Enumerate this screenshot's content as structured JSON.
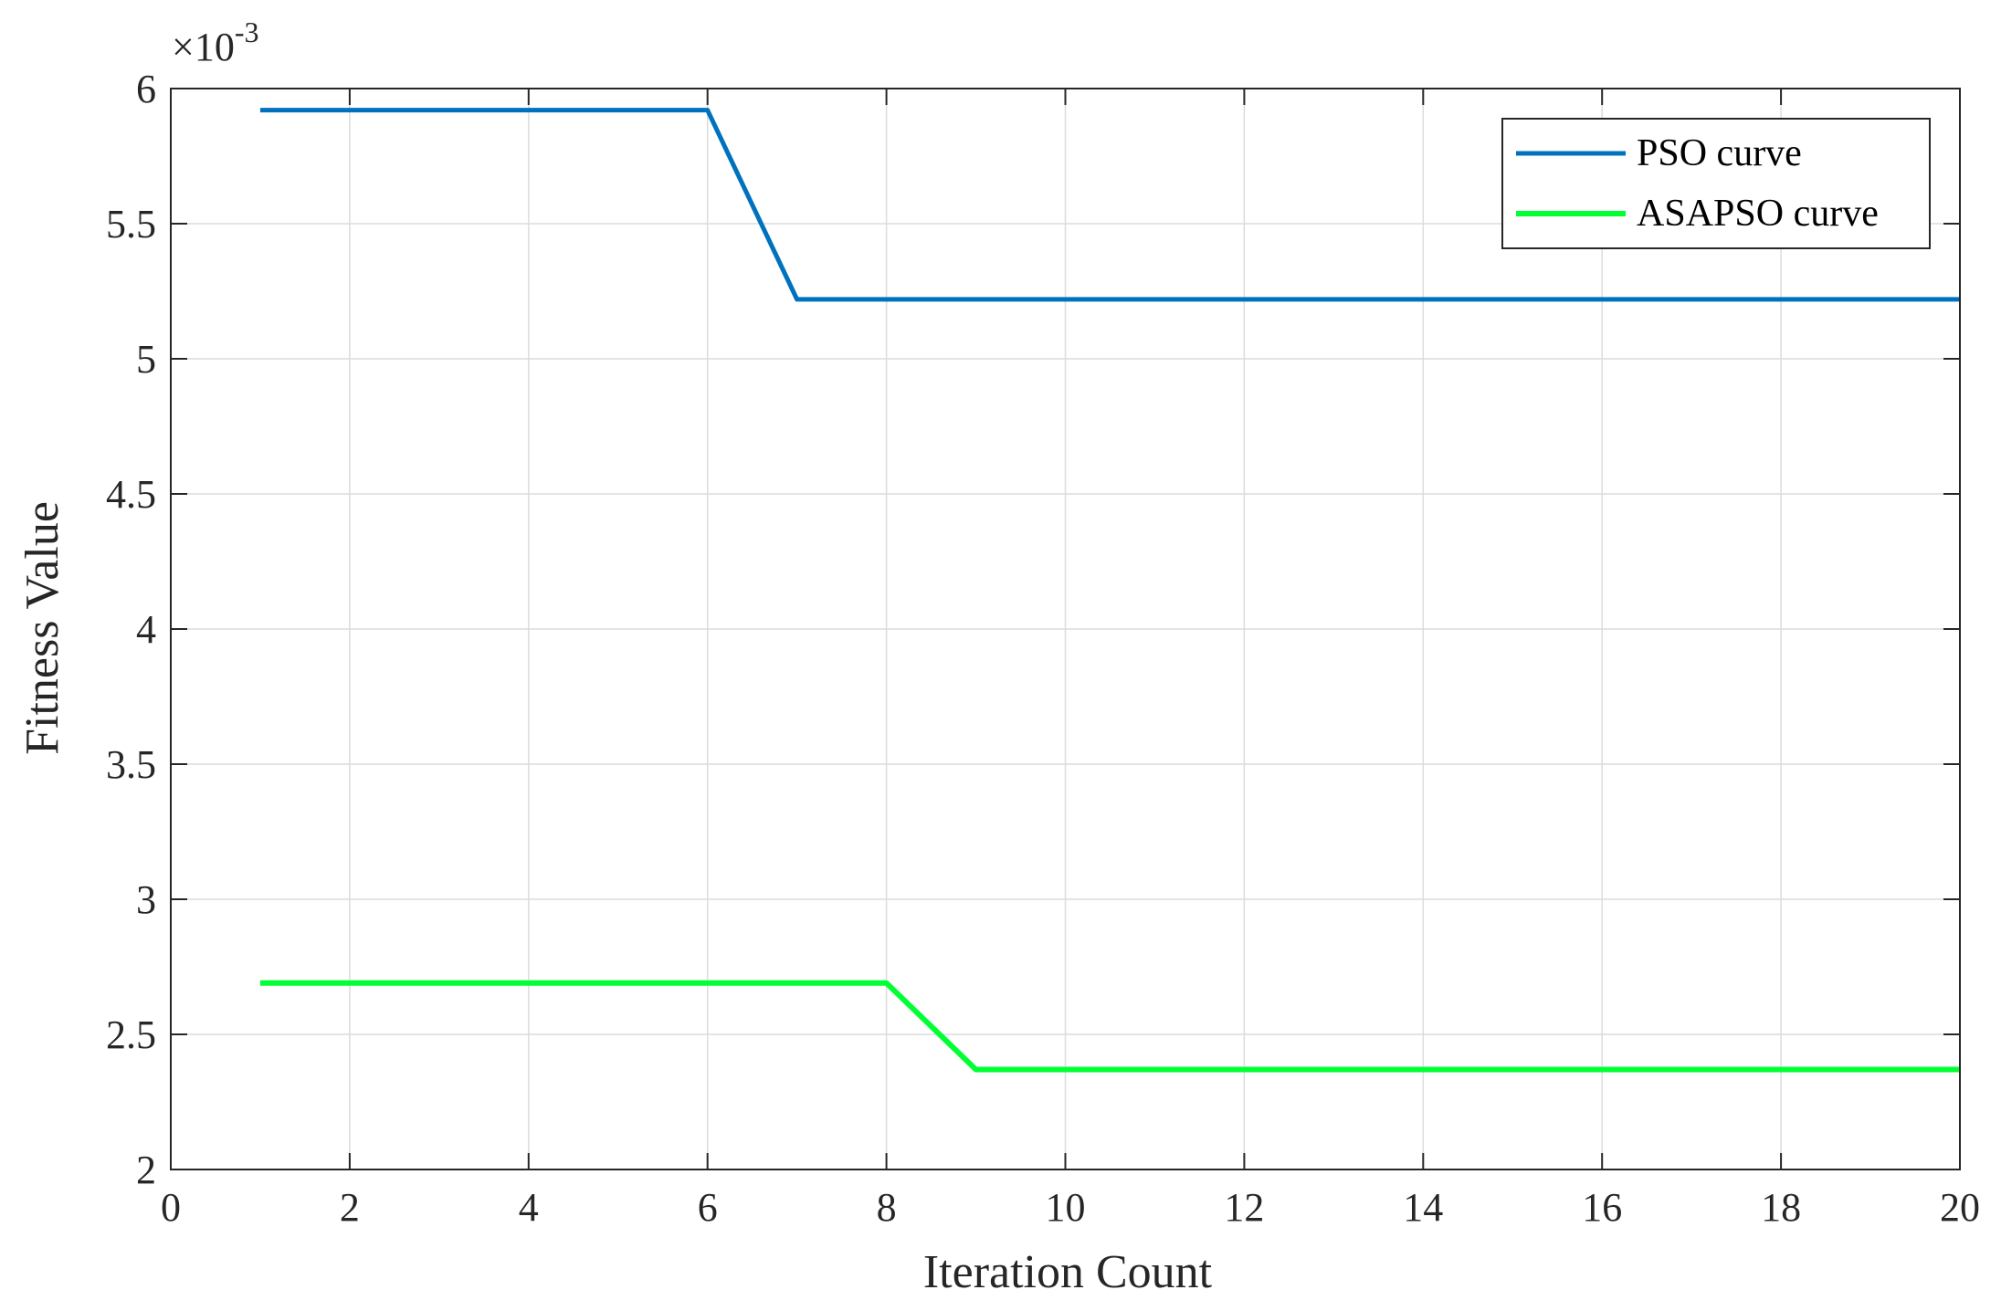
{
  "chart_data": {
    "type": "line",
    "title": "",
    "xlabel": "Iteration Count",
    "ylabel": "Fitness Value",
    "y_exponent_label": "×10",
    "y_exponent_power": "-3",
    "xlim": [
      0,
      20
    ],
    "ylim": [
      2,
      6
    ],
    "x_ticks": [
      0,
      2,
      4,
      6,
      8,
      10,
      12,
      14,
      16,
      18,
      20
    ],
    "y_ticks": [
      2,
      2.5,
      3,
      3.5,
      4,
      4.5,
      5,
      5.5,
      6
    ],
    "x_tick_labels": [
      "0",
      "2",
      "4",
      "6",
      "8",
      "10",
      "12",
      "14",
      "16",
      "18",
      "20"
    ],
    "y_tick_labels": [
      "2",
      "2.5",
      "3",
      "3.5",
      "4",
      "4.5",
      "5",
      "5.5",
      "6"
    ],
    "grid": true,
    "legend_position": "top-right",
    "series": [
      {
        "name": "PSO curve",
        "color": "#0072bd",
        "x": [
          1,
          2,
          3,
          4,
          5,
          6,
          7,
          8,
          9,
          10,
          11,
          12,
          13,
          14,
          15,
          16,
          17,
          18,
          19,
          20
        ],
        "y": [
          5.92,
          5.92,
          5.92,
          5.92,
          5.92,
          5.92,
          5.22,
          5.22,
          5.22,
          5.22,
          5.22,
          5.22,
          5.22,
          5.22,
          5.22,
          5.22,
          5.22,
          5.22,
          5.22,
          5.22
        ]
      },
      {
        "name": "ASAPSO curve",
        "color": "#00ff33",
        "x": [
          1,
          2,
          3,
          4,
          5,
          6,
          7,
          8,
          9,
          10,
          11,
          12,
          13,
          14,
          15,
          16,
          17,
          18,
          19,
          20
        ],
        "y": [
          2.69,
          2.69,
          2.69,
          2.69,
          2.69,
          2.69,
          2.69,
          2.69,
          2.37,
          2.37,
          2.37,
          2.37,
          2.37,
          2.37,
          2.37,
          2.37,
          2.37,
          2.37,
          2.37,
          2.37
        ]
      }
    ]
  }
}
